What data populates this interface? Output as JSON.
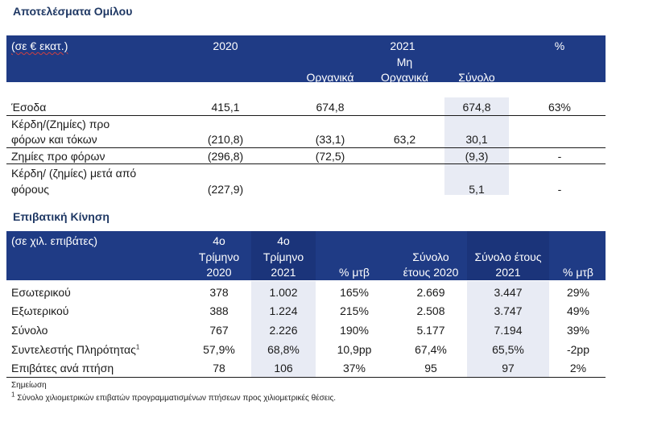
{
  "table1": {
    "title": "Αποτελέσματα Ομίλου",
    "header": {
      "unit": "(σε € εκατ.)",
      "y2020": "2020",
      "y2021": "2021",
      "organic": "Οργανικά",
      "non_organic_1": "Μη",
      "non_organic_2": "Οργανικά",
      "total": "Σύνολο",
      "pct": "%"
    },
    "rows": [
      {
        "label": [
          "Έσοδα"
        ],
        "v2020": "415,1",
        "organic": "674,8",
        "non_organic": "",
        "total": "674,8",
        "pct": "63%"
      },
      {
        "label": [
          "Κέρδη/(Ζημίες) προ",
          "φόρων και τόκων"
        ],
        "v2020": "(210,8)",
        "organic": "(33,1)",
        "non_organic": "63,2",
        "total": "30,1",
        "pct": ""
      },
      {
        "label": [
          "Ζημίες προ φόρων"
        ],
        "v2020": "(296,8)",
        "organic": "(72,5)",
        "non_organic": "",
        "total": "(9,3)",
        "pct": "-"
      },
      {
        "label": [
          "Κέρδη/ (ζημίες) μετά από",
          "φόρους"
        ],
        "v2020": "(227,9)",
        "organic": "",
        "non_organic": "",
        "total": "5,1",
        "pct": "-"
      }
    ]
  },
  "table2": {
    "title": "Επιβατική Κίνηση",
    "header": {
      "unit": "(σε χιλ. επιβάτες)",
      "q4_2020": [
        "4ο",
        "Τρίμηνο",
        "2020"
      ],
      "q4_2021": [
        "4ο",
        "Τρίμηνο",
        "2021"
      ],
      "pct1": "% μτβ",
      "total2020": [
        "Σύνολο",
        "έτους 2020"
      ],
      "total2021": [
        "Σύνολο έτους",
        "2021"
      ],
      "pct2": "% μτβ"
    },
    "rows": [
      {
        "label": "Εσωτερικού",
        "q2020": "378",
        "q2021": "1.002",
        "pct1": "165%",
        "t2020": "2.669",
        "t2021": "3.447",
        "pct2": "29%"
      },
      {
        "label": "Εξωτερικού",
        "q2020": "388",
        "q2021": "1.224",
        "pct1": "215%",
        "t2020": "2.508",
        "t2021": "3.747",
        "pct2": "49%"
      },
      {
        "label": "Σύνολο",
        "q2020": "767",
        "q2021": "2.226",
        "pct1": "190%",
        "t2020": "5.177",
        "t2021": "7.194",
        "pct2": "39%"
      },
      {
        "label": "Συντελεστής Πληρότητας",
        "label_sup": "1",
        "q2020": "57,9%",
        "q2021": "68,8%",
        "pct1": "10,9pp",
        "t2020": "67,4%",
        "t2021": "65,5%",
        "pct2": "-2pp"
      },
      {
        "label": "Επιβάτες ανά πτήση",
        "q2020": "78",
        "q2021": "106",
        "pct1": "37%",
        "t2020": "95",
        "t2021": "97",
        "pct2": "2%"
      }
    ]
  },
  "notes": {
    "heading": "Σημείωση",
    "footnote_mark": "1",
    "footnote": "Σύνολο χιλιομετρικών επιβατών προγραμματισμένων πτήσεων προς χιλιομετρικές θέσεις."
  }
}
